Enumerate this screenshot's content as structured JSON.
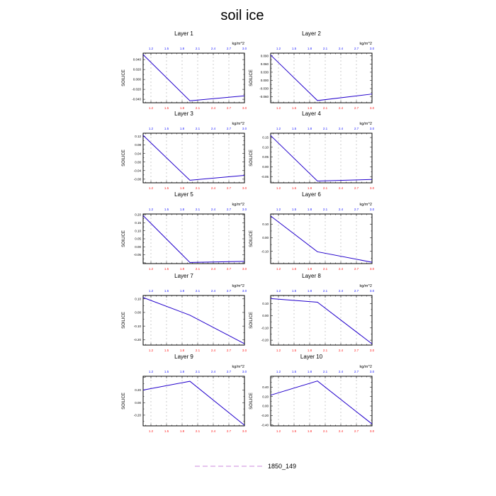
{
  "title": "soil ice",
  "legend": {
    "label": "1850_149"
  },
  "colors": {
    "line": "#2200cc",
    "bottom_ticks": "#ff2020",
    "top_ticks": "#1a1aff",
    "legend_dash": "#cc88dd"
  },
  "chart_data": {
    "type": "line",
    "xlim": [
      1.05,
      3.0
    ],
    "xticks": [
      "1.2",
      "1.5",
      "1.8",
      "2.1",
      "2.4",
      "2.7",
      "3.0"
    ],
    "xtick_values": [
      1.2,
      1.5,
      1.8,
      2.1,
      2.4,
      2.7,
      3.0
    ],
    "top_unit": "kg/m^2",
    "ylabel": "SOILICE",
    "series_name": "1850_149",
    "panels": [
      {
        "title": "Layer 1",
        "x": [
          1.05,
          1.95,
          3.0
        ],
        "y": [
          0.05,
          -0.043,
          -0.033
        ],
        "ylim": [
          -0.047,
          0.053
        ],
        "yticks": [
          "0.040",
          "0.020",
          "0.000",
          "-0.020",
          "-0.040"
        ],
        "ytick_values": [
          0.04,
          0.02,
          0.0,
          -0.02,
          -0.04
        ]
      },
      {
        "title": "Layer 2",
        "x": [
          1.05,
          1.95,
          3.0
        ],
        "y": [
          0.093,
          -0.074,
          -0.05
        ],
        "ylim": [
          -0.082,
          0.1
        ],
        "yticks": [
          "0.090",
          "0.060",
          "0.030",
          "0.000",
          "-0.030",
          "-0.060"
        ],
        "ytick_values": [
          0.09,
          0.06,
          0.03,
          0.0,
          -0.03,
          -0.06
        ]
      },
      {
        "title": "Layer 3",
        "x": [
          1.05,
          1.95,
          3.0
        ],
        "y": [
          0.125,
          -0.085,
          -0.062
        ],
        "ylim": [
          -0.097,
          0.135
        ],
        "yticks": [
          "0.12",
          "0.08",
          "0.04",
          "0.00",
          "-0.04",
          "-0.08"
        ],
        "ytick_values": [
          0.12,
          0.08,
          0.04,
          0.0,
          -0.04,
          -0.08
        ]
      },
      {
        "title": "Layer 4",
        "x": [
          1.05,
          1.95,
          3.0
        ],
        "y": [
          0.16,
          -0.073,
          -0.065
        ],
        "ylim": [
          -0.082,
          0.172
        ],
        "yticks": [
          "0.15",
          "0.10",
          "0.05",
          "0.00",
          "-0.05"
        ],
        "ytick_values": [
          0.15,
          0.1,
          0.05,
          0.0,
          -0.05
        ]
      },
      {
        "title": "Layer 5",
        "x": [
          1.05,
          1.95,
          3.0
        ],
        "y": [
          0.195,
          -0.098,
          -0.091
        ],
        "ylim": [
          -0.105,
          0.205
        ],
        "yticks": [
          "0.20",
          "0.15",
          "0.10",
          "0.05",
          "0.00",
          "-0.05"
        ],
        "ytick_values": [
          0.2,
          0.15,
          0.1,
          0.05,
          0.0,
          -0.05
        ]
      },
      {
        "title": "Layer 6",
        "x": [
          1.05,
          1.95,
          3.0
        ],
        "y": [
          0.16,
          -0.103,
          -0.18
        ],
        "ylim": [
          -0.19,
          0.175
        ],
        "yticks": [
          "0.10",
          "0.00",
          "-0.10"
        ],
        "ytick_values": [
          0.1,
          0.0,
          -0.1
        ]
      },
      {
        "title": "Layer 7",
        "x": [
          1.05,
          1.95,
          3.0
        ],
        "y": [
          0.11,
          -0.02,
          -0.23
        ],
        "ylim": [
          -0.24,
          0.125
        ],
        "yticks": [
          "0.10",
          "0.00",
          "-0.10",
          "-0.20"
        ],
        "ytick_values": [
          0.1,
          0.0,
          -0.1,
          -0.2
        ]
      },
      {
        "title": "Layer 8",
        "x": [
          1.05,
          1.95,
          3.0
        ],
        "y": [
          0.14,
          0.11,
          -0.23
        ],
        "ylim": [
          -0.24,
          0.165
        ],
        "yticks": [
          "0.10",
          "0.00",
          "-0.10",
          "-0.20"
        ],
        "ytick_values": [
          0.1,
          0.0,
          -0.1,
          -0.2
        ]
      },
      {
        "title": "Layer 9",
        "x": [
          1.05,
          1.95,
          3.0
        ],
        "y": [
          0.2,
          0.34,
          -0.36
        ],
        "ylim": [
          -0.37,
          0.42
        ],
        "yticks": [
          "0.20",
          "0.00",
          "-0.20"
        ],
        "ytick_values": [
          0.2,
          0.0,
          -0.2
        ]
      },
      {
        "title": "Layer 10",
        "x": [
          1.05,
          1.95,
          3.0
        ],
        "y": [
          0.23,
          0.53,
          -0.38
        ],
        "ylim": [
          -0.42,
          0.63
        ],
        "yticks": [
          "0.40",
          "0.20",
          "0.00",
          "-0.20",
          "-0.40"
        ],
        "ytick_values": [
          0.4,
          0.2,
          0.0,
          -0.2,
          -0.4
        ]
      }
    ]
  }
}
